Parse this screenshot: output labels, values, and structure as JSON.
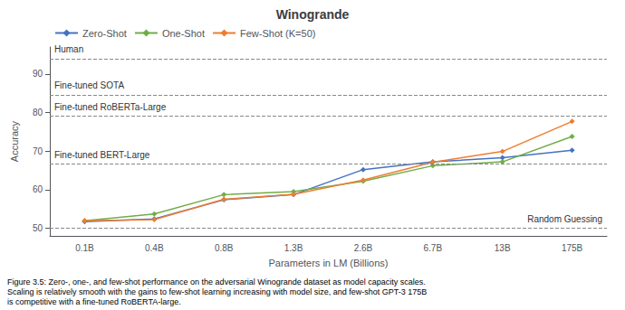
{
  "chart_data": {
    "type": "line",
    "title": "Winogrande",
    "xlabel": "Parameters in LM (Billions)",
    "ylabel": "Accuracy",
    "categories": [
      "0.1B",
      "0.4B",
      "0.8B",
      "1.3B",
      "2.6B",
      "6.7B",
      "13B",
      "175B"
    ],
    "series": [
      {
        "name": "Zero-Shot",
        "color": "#4472c4",
        "values": [
          51.7,
          52.4,
          57.4,
          58.7,
          65.2,
          67.2,
          68.3,
          70.2
        ]
      },
      {
        "name": "One-Shot",
        "color": "#70ad47",
        "values": [
          51.9,
          53.7,
          58.7,
          59.5,
          62.2,
          66.2,
          67.2,
          73.8
        ]
      },
      {
        "name": "Few-Shot (K=50)",
        "color": "#ed7d31",
        "values": [
          51.9,
          52.2,
          57.5,
          58.8,
          62.5,
          67.1,
          69.9,
          77.7
        ]
      }
    ],
    "marker": "diamond",
    "annotations": [
      {
        "label": "Human",
        "value": 94.0
      },
      {
        "label": "Fine-tuned SOTA",
        "value": 84.6
      },
      {
        "label": "Fine-tuned RoBERTa-Large",
        "value": 79.1
      },
      {
        "label": "Fine-tuned BERT-Large",
        "value": 66.6
      },
      {
        "label": "Random Guessing",
        "value": 50.0
      }
    ],
    "caption": "Figure 3.5: Zero-, one-, and few-shot performance on the adversarial Winogrande dataset as model capacity scales.\nScaling is relatively smooth with the gains to few-shot learning increasing with model size, and few-shot GPT-3 175B\nis competitive with a fine-tuned RoBERTA-large.",
    "ylim": [
      48,
      97
    ],
    "yticks": [
      50,
      60,
      70,
      80,
      90
    ],
    "grid": false,
    "legend": "upper left"
  }
}
